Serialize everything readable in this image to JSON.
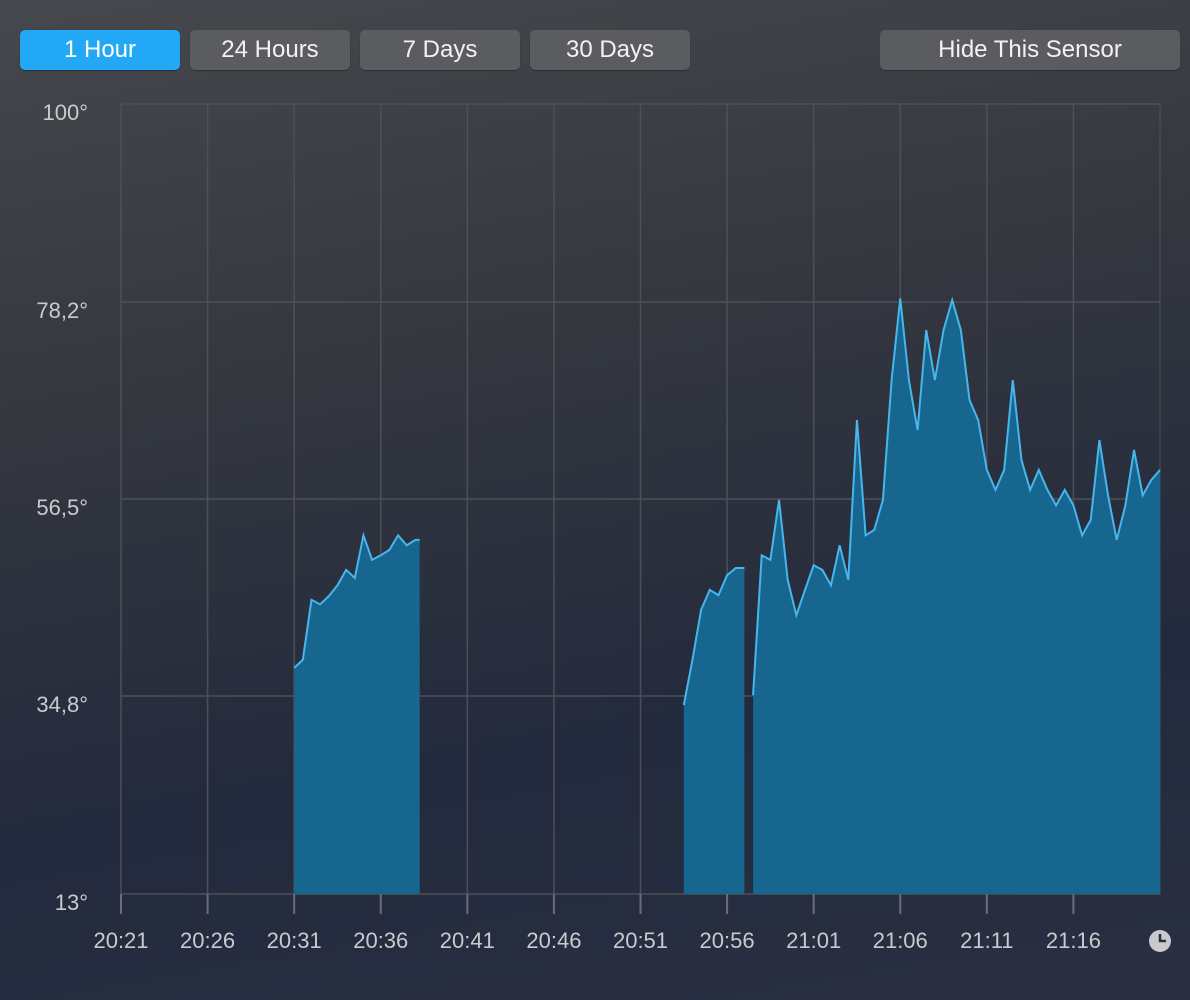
{
  "buttons": [
    "1 Hour",
    "24 Hours",
    "7 Days",
    "30 Days"
  ],
  "hide_button": "Hide This Sensor",
  "chart_data": {
    "type": "area",
    "x": [
      "20:31:00",
      "20:31:30",
      "20:32:00",
      "20:32:30",
      "20:33:00",
      "20:33:30",
      "20:34:00",
      "20:34:30",
      "20:35:00",
      "20:35:30",
      "20:36:00",
      "20:36:30",
      "20:37:00",
      "20:37:30",
      "20:38:00",
      "20:38:15",
      "20:46:00",
      "20:53:30",
      "20:54:00",
      "20:54:30",
      "20:55:00",
      "20:55:30",
      "20:56:00",
      "20:56:30",
      "20:57:00",
      "20:57:15",
      "20:57:30",
      "20:58:00",
      "20:58:30",
      "20:59:00",
      "20:59:30",
      "21:00:00",
      "21:00:30",
      "21:01:00",
      "21:01:30",
      "21:02:00",
      "21:02:30",
      "21:03:00",
      "21:03:30",
      "21:04:00",
      "21:04:30",
      "21:05:00",
      "21:05:30",
      "21:06:00",
      "21:06:30",
      "21:07:00",
      "21:07:30",
      "21:08:00",
      "21:08:30",
      "21:09:00",
      "21:09:30",
      "21:10:00",
      "21:10:30",
      "21:11:00",
      "21:11:30",
      "21:12:00",
      "21:12:30",
      "21:13:00",
      "21:13:30",
      "21:14:00",
      "21:14:30",
      "21:15:00",
      "21:15:30",
      "21:16:00",
      "21:16:30",
      "21:17:00",
      "21:17:30",
      "21:18:00",
      "21:18:30",
      "21:19:00",
      "21:19:30",
      "21:20:00",
      "21:20:30",
      "21:21:00"
    ],
    "series": [
      {
        "color": "#47b6ec",
        "fill": "#17668f",
        "values": [
          37.9,
          38.8,
          45.4,
          44.9,
          45.8,
          47.0,
          48.7,
          47.8,
          52.5,
          49.8,
          50.3,
          50.9,
          52.5,
          51.4,
          52.0,
          52.0,
          null,
          33.8,
          38.8,
          44.3,
          46.5,
          45.9,
          48.1,
          48.9,
          48.9,
          null,
          34.9,
          50.3,
          49.8,
          56.4,
          47.6,
          43.7,
          46.5,
          49.2,
          48.7,
          47.0,
          51.4,
          47.6,
          65.2,
          52.5,
          53.1,
          56.4,
          69.6,
          78.6,
          69.6,
          64.1,
          75.1,
          69.6,
          75.1,
          78.4,
          75.1,
          67.4,
          65.2,
          59.7,
          57.5,
          59.7,
          69.6,
          60.8,
          57.5,
          59.7,
          57.5,
          55.8,
          57.5,
          55.8,
          52.5,
          54.2,
          63.0,
          56.9,
          52.0,
          55.8,
          61.9,
          56.9,
          58.6,
          59.7
        ]
      }
    ],
    "xlim": [
      "20:21",
      "21:21"
    ],
    "xticks": [
      "20:21",
      "20:26",
      "20:31",
      "20:36",
      "20:41",
      "20:46",
      "20:51",
      "20:56",
      "21:01",
      "21:06",
      "21:11",
      "21:16"
    ],
    "ylim": [
      13,
      100
    ],
    "yticks": [
      {
        "value": 13,
        "label": "13°"
      },
      {
        "value": 34.8,
        "label": "34,8°"
      },
      {
        "value": 56.5,
        "label": "56,5°"
      },
      {
        "value": 78.2,
        "label": "78,2°"
      },
      {
        "value": 100,
        "label": "100°"
      }
    ],
    "grid": true
  }
}
